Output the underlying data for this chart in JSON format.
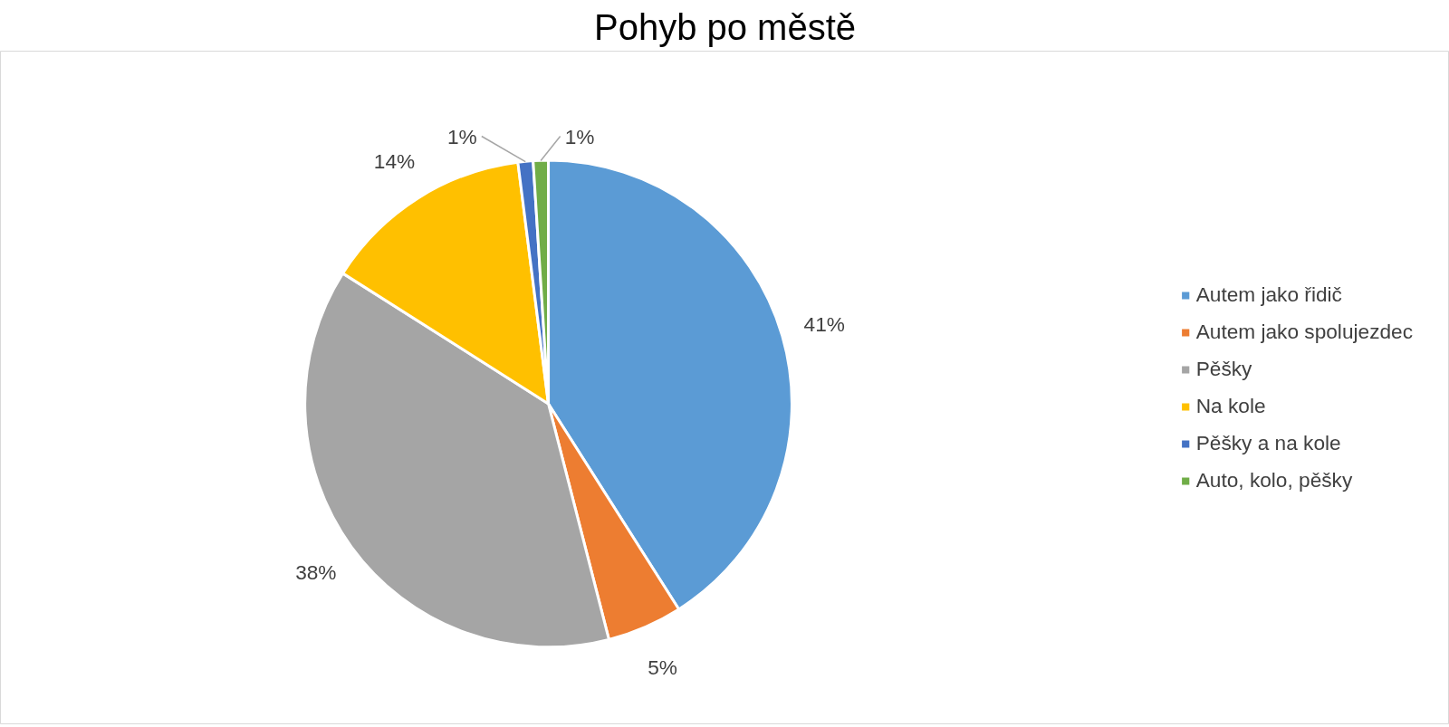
{
  "chart_data": {
    "type": "pie",
    "title": "Pohyb po městě",
    "categories": [
      "Autem jako řidič",
      "Autem jako spolujezdec",
      "Pěšky",
      "Na kole",
      "Pěšky a na kole",
      "Auto, kolo, pěšky"
    ],
    "values": [
      41,
      5,
      38,
      14,
      1,
      1
    ],
    "colors": [
      "#5b9bd5",
      "#ed7d31",
      "#a5a5a5",
      "#ffc000",
      "#4472c4",
      "#70ad47"
    ],
    "value_labels": [
      "41%",
      "5%",
      "38%",
      "14%",
      "1%",
      "1%"
    ],
    "legend": "right"
  }
}
